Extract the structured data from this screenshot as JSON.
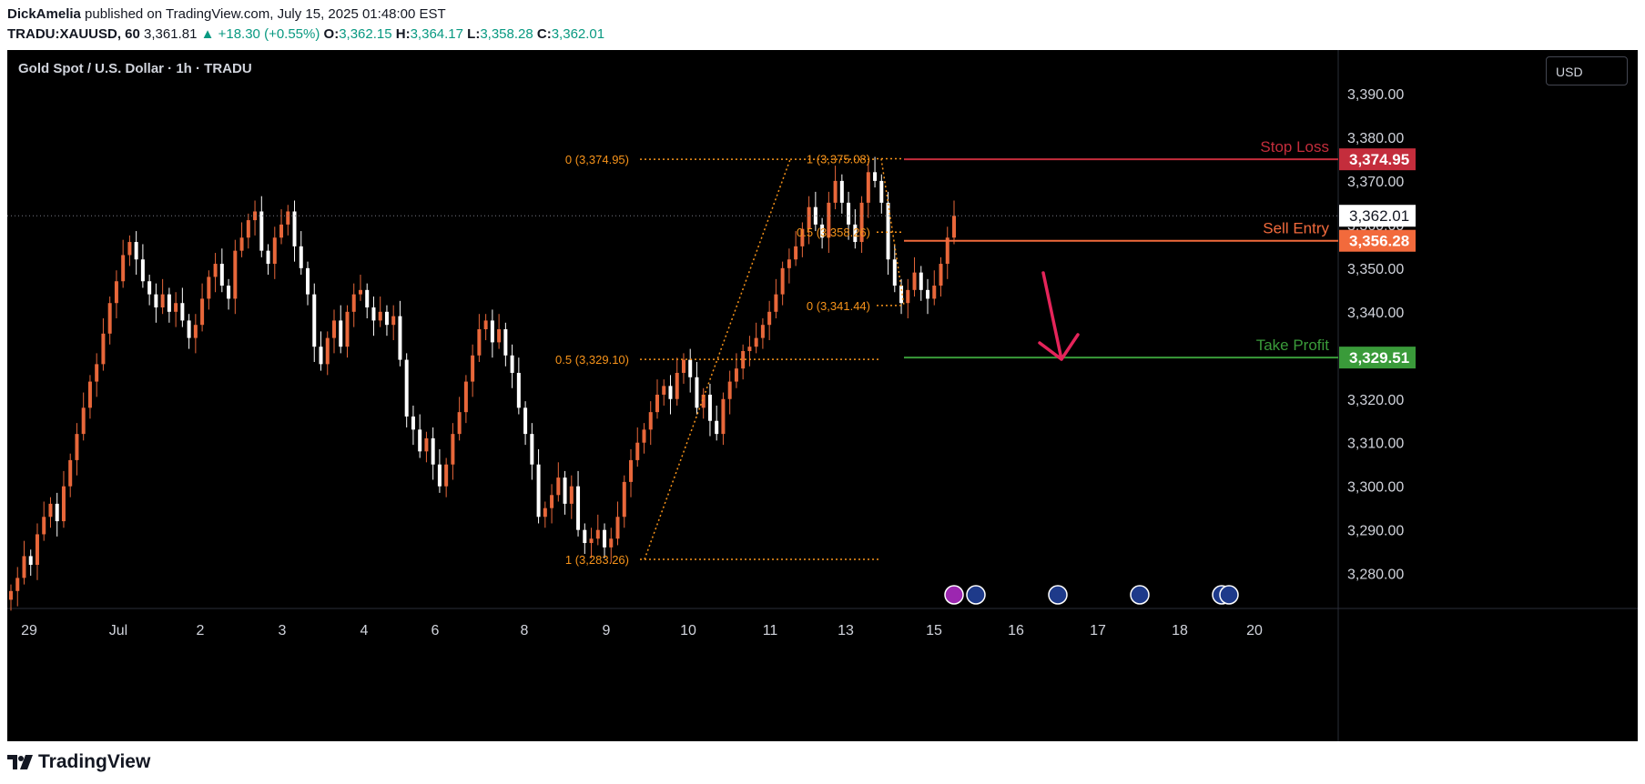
{
  "header": {
    "author": "DickAmelia",
    "published": " published on TradingView.com, July 15, 2025 01:48:00 EST",
    "symbol": "TRADU:XAUUSD, 60",
    "last": "3,361.81",
    "change": "▲ +18.30 (+0.55%)",
    "o_label": "O:",
    "o": "3,362.15",
    "h_label": "H:",
    "h": "3,364.17",
    "l_label": "L:",
    "l": "3,358.28",
    "c_label": "C:",
    "c": "3,362.01"
  },
  "legend": "Gold Spot / U.S. Dollar · 1h · TRADU",
  "currency_button": "USD",
  "footer": {
    "brand": "TradingView"
  },
  "colors": {
    "bull": "#e8673a",
    "bear": "#ffffff",
    "fib": "#f7931a",
    "stop": "#c42d3c",
    "entry": "#f26a3c",
    "tp": "#3a9b3a",
    "arrow": "#e5245a",
    "price_tag_bg": "#ffffff"
  },
  "chart_data": {
    "type": "candlestick",
    "ylim": [
      3272,
      3400
    ],
    "y_ticks": [
      "3,390.00",
      "3,380.00",
      "3,370.00",
      "3,360.00",
      "3,350.00",
      "3,340.00",
      "3,330.00",
      "3,320.00",
      "3,310.00",
      "3,300.00",
      "3,290.00",
      "3,280.00"
    ],
    "x_ticks": [
      "29",
      "Jul",
      "2",
      "3",
      "4",
      "6",
      "8",
      "9",
      "10",
      "11",
      "13",
      "15",
      "16",
      "17",
      "18",
      "20"
    ],
    "current_price": "3,362.01",
    "levels": [
      {
        "name": "Stop Loss",
        "value": 3374.95,
        "tag": "3,374.95"
      },
      {
        "name": "Sell Entry",
        "value": 3356.28,
        "tag": "3,356.28"
      },
      {
        "name": "Take Profit",
        "value": 3329.51,
        "tag": "3,329.51"
      }
    ],
    "fib_labels": [
      "0 (3,374.95)",
      "1 (3,283.26)",
      "0.5 (3,329.10)",
      "1 (3,375.08)",
      "0 (3,341.44)",
      "0.5 (3,358.26)"
    ],
    "closes": [
      3276,
      3279,
      3284,
      3282,
      3289,
      3293,
      3296,
      3292,
      3300,
      3306,
      3312,
      3318,
      3324,
      3328,
      3335,
      3342,
      3347,
      3353,
      3356,
      3352,
      3347,
      3344,
      3341,
      3344,
      3340,
      3342,
      3338,
      3334,
      3337,
      3343,
      3348,
      3351,
      3346,
      3343,
      3354,
      3357,
      3361,
      3363,
      3354,
      3351,
      3357,
      3360,
      3363,
      3355,
      3350,
      3344,
      3332,
      3328,
      3334,
      3338,
      3332,
      3340,
      3344,
      3345,
      3341,
      3338,
      3340,
      3337,
      3339,
      3329,
      3316,
      3313,
      3308,
      3311,
      3305,
      3300,
      3305,
      3312,
      3317,
      3324,
      3330,
      3336,
      3338,
      3333,
      3336,
      3330,
      3326,
      3318,
      3312,
      3305,
      3293,
      3295,
      3298,
      3302,
      3296,
      3300,
      3290,
      3287,
      3288,
      3290,
      3286,
      3288,
      3293,
      3301,
      3306,
      3310,
      3313,
      3317,
      3321,
      3323,
      3320,
      3326,
      3329,
      3325,
      3318,
      3321,
      3315,
      3312,
      3320,
      3324,
      3327,
      3331,
      3332,
      3334,
      3337,
      3340,
      3344,
      3350,
      3352,
      3355,
      3359,
      3364,
      3360,
      3357,
      3365,
      3370,
      3365,
      3360,
      3356,
      3365,
      3372,
      3370,
      3365,
      3352,
      3346,
      3342,
      3345,
      3349,
      3345,
      3343,
      3346,
      3351,
      3357,
      3362
    ]
  }
}
